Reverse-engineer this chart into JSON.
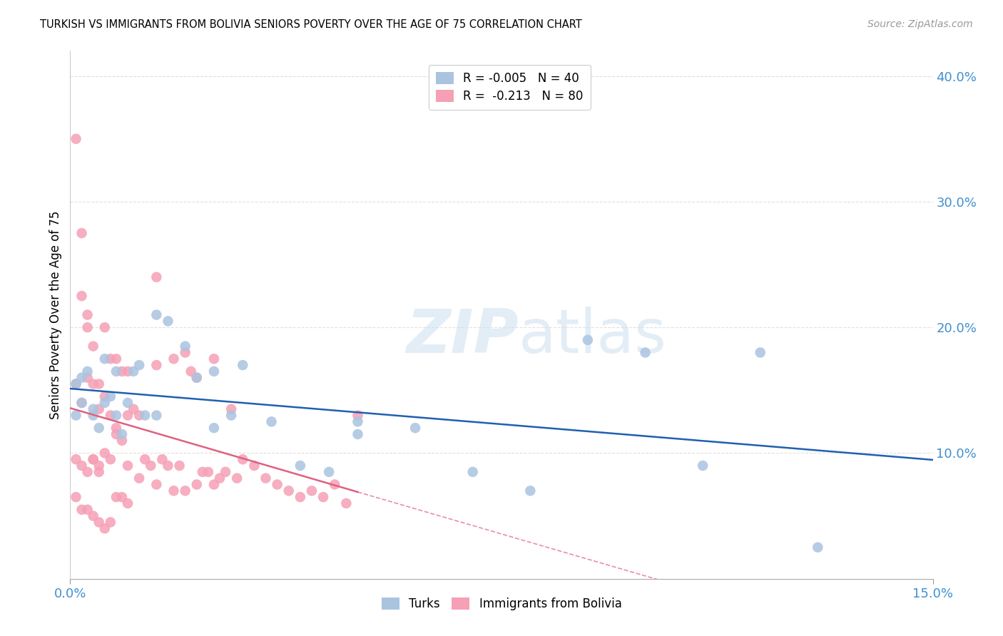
{
  "title": "TURKISH VS IMMIGRANTS FROM BOLIVIA SENIORS POVERTY OVER THE AGE OF 75 CORRELATION CHART",
  "source": "Source: ZipAtlas.com",
  "ylabel": "Seniors Poverty Over the Age of 75",
  "xmin": 0.0,
  "xmax": 0.15,
  "ymin": 0.0,
  "ymax": 0.42,
  "turks_R": -0.005,
  "turks_N": 40,
  "bolivia_R": -0.213,
  "bolivia_N": 80,
  "turks_color": "#aac4e0",
  "bolivia_color": "#f5a0b5",
  "turks_line_color": "#2060b0",
  "bolivia_line_color": "#e06080",
  "right_axis_color": "#4090d0",
  "right_yticks": [
    0.1,
    0.2,
    0.3,
    0.4
  ],
  "right_ytick_labels": [
    "10.0%",
    "20.0%",
    "30.0%",
    "40.0%"
  ],
  "turks_x": [
    0.001,
    0.001,
    0.002,
    0.002,
    0.003,
    0.004,
    0.005,
    0.006,
    0.007,
    0.008,
    0.008,
    0.009,
    0.01,
    0.011,
    0.012,
    0.013,
    0.015,
    0.017,
    0.02,
    0.022,
    0.025,
    0.028,
    0.03,
    0.035,
    0.04,
    0.045,
    0.05,
    0.06,
    0.07,
    0.08,
    0.09,
    0.1,
    0.11,
    0.12,
    0.13,
    0.004,
    0.006,
    0.015,
    0.025,
    0.05
  ],
  "turks_y": [
    0.155,
    0.13,
    0.16,
    0.14,
    0.165,
    0.13,
    0.12,
    0.175,
    0.145,
    0.165,
    0.13,
    0.115,
    0.14,
    0.165,
    0.17,
    0.13,
    0.21,
    0.205,
    0.185,
    0.16,
    0.165,
    0.13,
    0.17,
    0.125,
    0.09,
    0.085,
    0.125,
    0.12,
    0.085,
    0.07,
    0.19,
    0.18,
    0.09,
    0.18,
    0.025,
    0.135,
    0.14,
    0.13,
    0.12,
    0.115
  ],
  "bolivia_x": [
    0.001,
    0.001,
    0.001,
    0.002,
    0.002,
    0.002,
    0.003,
    0.003,
    0.003,
    0.004,
    0.004,
    0.004,
    0.005,
    0.005,
    0.005,
    0.006,
    0.006,
    0.007,
    0.007,
    0.008,
    0.008,
    0.009,
    0.009,
    0.01,
    0.01,
    0.011,
    0.012,
    0.013,
    0.014,
    0.015,
    0.015,
    0.016,
    0.017,
    0.018,
    0.019,
    0.02,
    0.021,
    0.022,
    0.023,
    0.024,
    0.025,
    0.026,
    0.027,
    0.028,
    0.029,
    0.03,
    0.032,
    0.034,
    0.036,
    0.038,
    0.04,
    0.042,
    0.044,
    0.046,
    0.048,
    0.05,
    0.002,
    0.003,
    0.004,
    0.005,
    0.006,
    0.007,
    0.008,
    0.01,
    0.012,
    0.015,
    0.018,
    0.02,
    0.022,
    0.025,
    0.001,
    0.002,
    0.003,
    0.004,
    0.005,
    0.006,
    0.007,
    0.008,
    0.009,
    0.01
  ],
  "bolivia_y": [
    0.35,
    0.155,
    0.095,
    0.275,
    0.14,
    0.09,
    0.2,
    0.16,
    0.085,
    0.185,
    0.155,
    0.095,
    0.155,
    0.135,
    0.085,
    0.2,
    0.145,
    0.175,
    0.13,
    0.175,
    0.12,
    0.165,
    0.11,
    0.165,
    0.13,
    0.135,
    0.13,
    0.095,
    0.09,
    0.24,
    0.17,
    0.095,
    0.09,
    0.175,
    0.09,
    0.18,
    0.165,
    0.16,
    0.085,
    0.085,
    0.175,
    0.08,
    0.085,
    0.135,
    0.08,
    0.095,
    0.09,
    0.08,
    0.075,
    0.07,
    0.065,
    0.07,
    0.065,
    0.075,
    0.06,
    0.13,
    0.225,
    0.21,
    0.095,
    0.09,
    0.1,
    0.095,
    0.115,
    0.09,
    0.08,
    0.075,
    0.07,
    0.07,
    0.075,
    0.075,
    0.065,
    0.055,
    0.055,
    0.05,
    0.045,
    0.04,
    0.045,
    0.065,
    0.065,
    0.06
  ]
}
